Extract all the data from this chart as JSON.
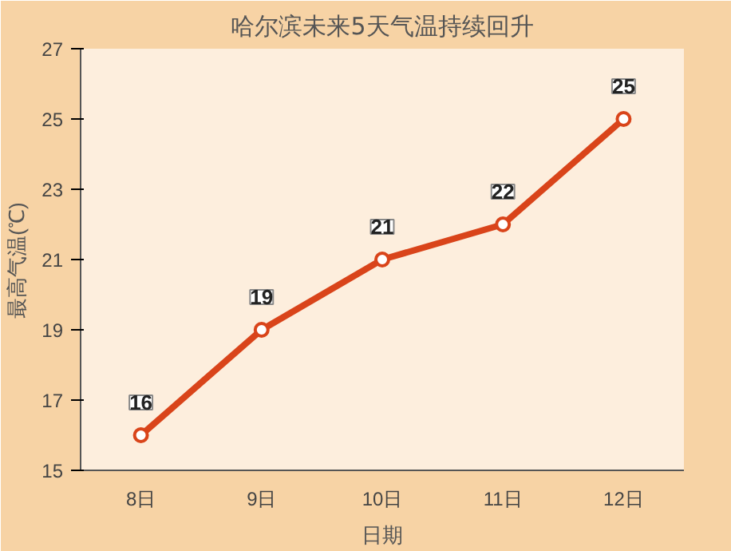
{
  "chart_data": {
    "type": "line",
    "title": "哈尔滨未来5天气温持续回升",
    "xlabel": "日期",
    "ylabel": "最高气温(℃)",
    "categories": [
      "8日",
      "9日",
      "10日",
      "11日",
      "12日"
    ],
    "series": [
      {
        "color": "#d9441a",
        "values": [
          16,
          19,
          21,
          22,
          25
        ]
      }
    ],
    "ylim": [
      15,
      27
    ],
    "yticks": [
      15,
      17,
      19,
      21,
      23,
      25,
      27
    ],
    "data_labels": true,
    "marker": "circle",
    "line_style": "solid",
    "grid": false
  }
}
